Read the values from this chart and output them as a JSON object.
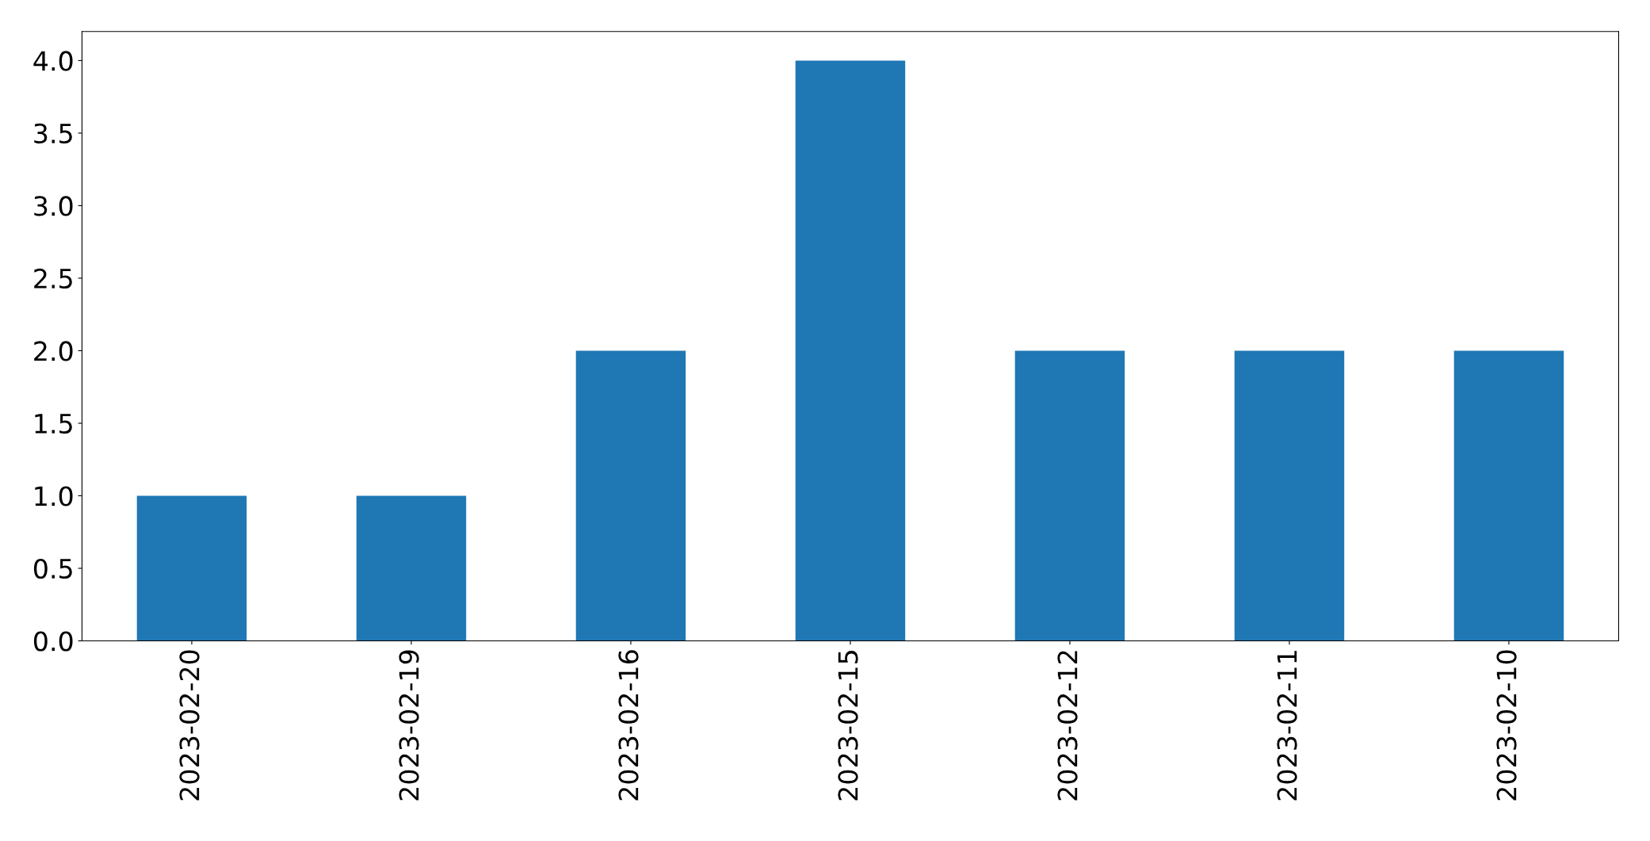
{
  "chart_data": {
    "type": "bar",
    "categories": [
      "2023-02-20",
      "2023-02-19",
      "2023-02-16",
      "2023-02-15",
      "2023-02-12",
      "2023-02-11",
      "2023-02-10"
    ],
    "values": [
      1,
      1,
      2,
      4,
      2,
      2,
      2
    ],
    "color": "#1f77b4",
    "ylim": [
      0,
      4.2
    ],
    "yticks": [
      {
        "value": 0,
        "label": "0.0"
      },
      {
        "value": 0.5,
        "label": "0.5"
      },
      {
        "value": 1,
        "label": "1.0"
      },
      {
        "value": 1.5,
        "label": "1.5"
      },
      {
        "value": 2,
        "label": "2.0"
      },
      {
        "value": 2.5,
        "label": "2.5"
      },
      {
        "value": 3,
        "label": "3.0"
      },
      {
        "value": 3.5,
        "label": "3.5"
      },
      {
        "value": 4,
        "label": "4.0"
      }
    ],
    "grid": false,
    "legend": false
  }
}
